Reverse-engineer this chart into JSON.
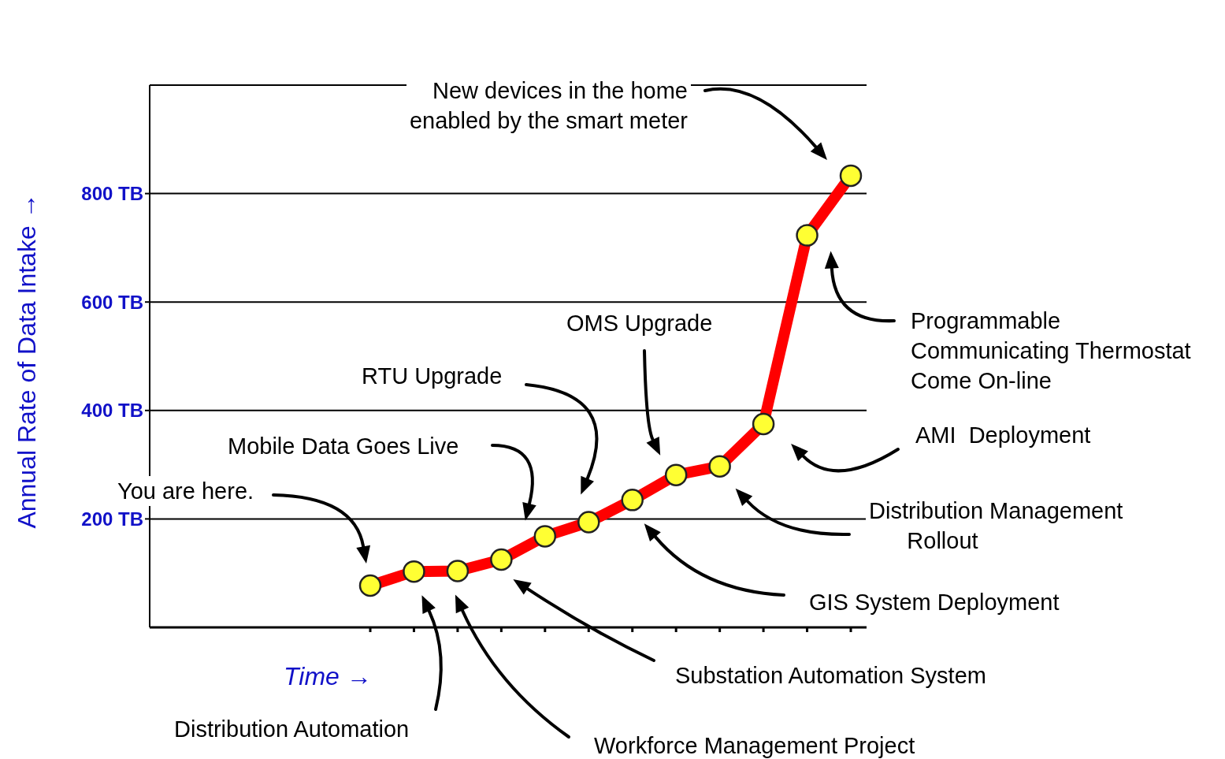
{
  "chart_data": {
    "type": "line",
    "ylabel": "Annual Rate of Data Intake →",
    "xlabel": "Time →",
    "categories": [
      null,
      null,
      null,
      null,
      null,
      null,
      null,
      null,
      null,
      null,
      null,
      null
    ],
    "series": [
      {
        "color": "#ff0000",
        "values": [
          77,
          103,
          104,
          125,
          168,
          194,
          235,
          281,
          297,
          375,
          723,
          833
        ]
      }
    ],
    "ylim": [
      0,
      1000
    ],
    "yticks": [
      {
        "value": 200,
        "label": "200 TB"
      },
      {
        "value": 400,
        "label": "400 TB"
      },
      {
        "value": 600,
        "label": "600 TB"
      },
      {
        "value": 800,
        "label": "800 TB"
      }
    ],
    "grid": "y",
    "marker": "circle",
    "line_style": "solid",
    "annotations": [
      "New devices in the home\nenabled by the smart meter",
      "Programmable\nCommunicating Thermostat\nCome On-line",
      "OMS Upgrade",
      "RTU Upgrade",
      "AMI  Deployment",
      "Mobile Data Goes Live",
      "You are here.",
      "Distribution Management\n      Rollout",
      "GIS System Deployment",
      "Substation Automation System",
      "Workforce Management Project",
      "Distribution Automation"
    ]
  }
}
